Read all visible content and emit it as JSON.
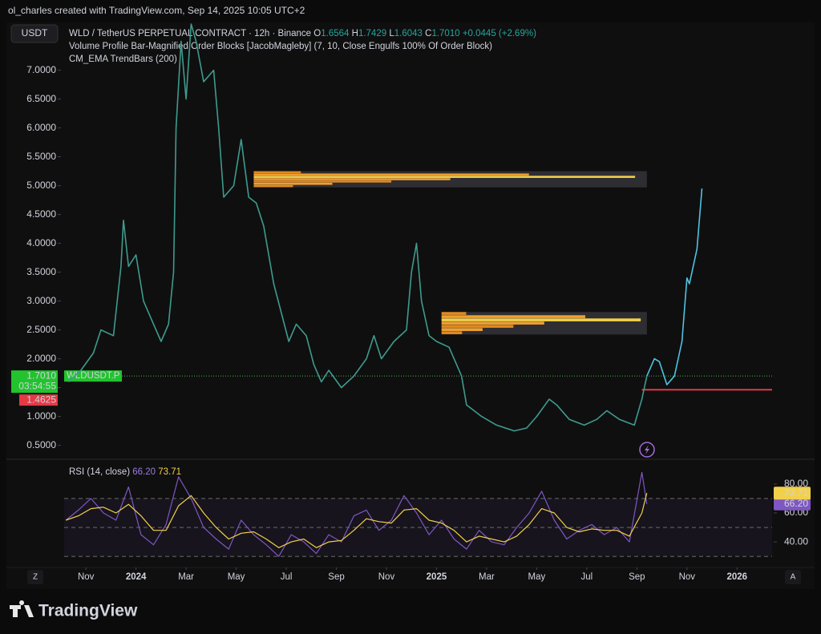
{
  "page": {
    "credit": "ol_charles created with TradingView.com, Sep 14, 2025 10:05 UTC+2",
    "currency_button": "USDT",
    "legend": {
      "symbol": "WLD / TetherUS PERPETUAL CONTRACT · 12h · Binance",
      "ohlc": [
        {
          "key": "O",
          "value": "1.6564"
        },
        {
          "key": "H",
          "value": "1.7429"
        },
        {
          "key": "L",
          "value": "1.6043"
        },
        {
          "key": "C",
          "value": "1.7010"
        }
      ],
      "change": "+0.0445 (+2.69%)",
      "indicators": [
        "Volume Profile Bar-Magnified Order Blocks [JacobMagleby] (7, 10, Close Engulfs 100% Of Order Block)",
        "CM_EMA TrendBars (200)"
      ]
    },
    "axis_buttons": [
      "Z",
      "A"
    ],
    "footer": "TradingView"
  },
  "chart_data": [
    {
      "type": "line",
      "xlim": [
        -2.87,
        25.4
      ],
      "ylim": [
        0.3,
        7.8
      ],
      "xticks": [
        {
          "value": -2,
          "label": "Nov"
        },
        {
          "value": 0,
          "label": "2024"
        },
        {
          "value": 2,
          "label": "Mar"
        },
        {
          "value": 4,
          "label": "May"
        },
        {
          "value": 6,
          "label": "Jul"
        },
        {
          "value": 8,
          "label": "Sep"
        },
        {
          "value": 10,
          "label": "Nov"
        },
        {
          "value": 12,
          "label": "2025"
        },
        {
          "value": 14,
          "label": "Mar"
        },
        {
          "value": 16,
          "label": "May"
        },
        {
          "value": 18,
          "label": "Jul"
        },
        {
          "value": 20,
          "label": "Sep"
        },
        {
          "value": 22,
          "label": "Nov"
        },
        {
          "value": 24,
          "label": "2026"
        }
      ],
      "yticks": [
        {
          "value": 0.5,
          "label": "0.5000"
        },
        {
          "value": 1,
          "label": "1.0000"
        },
        {
          "value": 1.5,
          "label": "1.5000"
        },
        {
          "value": 2,
          "label": "2.0000"
        },
        {
          "value": 2.5,
          "label": "2.5000"
        },
        {
          "value": 3,
          "label": "3.0000"
        },
        {
          "value": 3.5,
          "label": "3.5000"
        },
        {
          "value": 4,
          "label": "4.0000"
        },
        {
          "value": 4.5,
          "label": "4.5000"
        },
        {
          "value": 5,
          "label": "5.0000"
        },
        {
          "value": 5.5,
          "label": "5.5000"
        },
        {
          "value": 6,
          "label": "6.0000"
        },
        {
          "value": 6.5,
          "label": "6.5000"
        },
        {
          "value": 7,
          "label": "7.0000"
        }
      ],
      "series": [
        {
          "color": "#3f9b8c",
          "x": [
            -2.7,
            -2.2,
            -1.7,
            -1.4,
            -0.9,
            -0.6,
            -0.5,
            -0.3,
            0.0,
            0.3,
            0.7,
            1.0,
            1.3,
            1.5,
            1.6,
            1.8,
            2.0,
            2.2,
            2.4,
            2.7,
            3.1,
            3.3,
            3.5,
            3.9,
            4.2,
            4.5,
            4.8,
            5.1,
            5.5,
            5.8,
            6.1,
            6.4,
            6.8,
            7.1,
            7.4,
            7.7,
            8.2,
            8.7,
            9.2,
            9.5,
            9.8,
            10.3,
            10.8,
            11.0,
            11.2,
            11.4,
            11.7,
            12.0,
            12.5,
            13.0,
            13.2,
            13.8,
            14.4,
            15.1,
            15.6,
            16.0,
            16.5,
            16.8,
            17.3,
            17.9,
            18.4,
            18.8,
            19.3,
            19.9,
            20.2,
            20.4
          ],
          "values": [
            1.6,
            1.8,
            2.1,
            2.5,
            2.4,
            3.6,
            4.4,
            3.6,
            3.8,
            3.0,
            2.6,
            2.3,
            2.6,
            3.5,
            6.0,
            7.5,
            6.5,
            7.8,
            7.5,
            6.8,
            7.0,
            6.0,
            4.8,
            5.0,
            5.8,
            4.8,
            4.7,
            4.3,
            3.3,
            2.8,
            2.3,
            2.6,
            2.4,
            1.9,
            1.6,
            1.8,
            1.5,
            1.7,
            2.0,
            2.4,
            2.0,
            2.3,
            2.5,
            3.5,
            4.0,
            3.0,
            2.4,
            2.3,
            2.2,
            1.7,
            1.2,
            1.0,
            0.85,
            0.75,
            0.8,
            1.0,
            1.3,
            1.2,
            0.95,
            0.85,
            0.95,
            1.1,
            0.95,
            0.85,
            1.3,
            1.7
          ]
        },
        {
          "color": "#4fc3e0",
          "x": [
            20.4,
            20.7,
            20.9,
            21.2,
            21.5,
            21.8,
            22.0,
            22.1,
            22.4,
            22.6
          ],
          "values": [
            1.7,
            2.0,
            1.95,
            1.55,
            1.7,
            2.3,
            3.4,
            3.3,
            3.9,
            4.95
          ]
        }
      ],
      "order_blocks": [
        {
          "x": [
            4.7,
            20.4
          ],
          "y": [
            4.97,
            5.25
          ]
        },
        {
          "x": [
            12.2,
            20.4
          ],
          "y": [
            2.42,
            2.81
          ]
        }
      ],
      "last_price": {
        "value": 1.701,
        "label": "1.7010"
      },
      "countdown": "03:54:55",
      "symbol_tag": "WLDUSDT.P",
      "stop_level": 1.4625,
      "stop_start": 20.2
    },
    {
      "type": "line",
      "title": "RSI (14, close)",
      "xlim": [
        -2.87,
        25.4
      ],
      "ylim": [
        24,
        96
      ],
      "yticks": [
        {
          "value": 40,
          "label": "40.00"
        },
        {
          "value": 60,
          "label": "60.00"
        },
        {
          "value": 80,
          "label": "80.00"
        }
      ],
      "levels": [
        70,
        50,
        30
      ],
      "x": [
        -2.8,
        -2.3,
        -1.8,
        -1.3,
        -0.8,
        -0.3,
        0.2,
        0.7,
        1.2,
        1.7,
        2.2,
        2.7,
        3.2,
        3.7,
        4.2,
        4.7,
        5.2,
        5.7,
        6.2,
        6.7,
        7.2,
        7.7,
        8.2,
        8.7,
        9.2,
        9.7,
        10.2,
        10.7,
        11.2,
        11.7,
        12.2,
        12.7,
        13.2,
        13.7,
        14.2,
        14.7,
        15.2,
        15.7,
        16.2,
        16.7,
        17.2,
        17.7,
        18.2,
        18.7,
        19.2,
        19.7,
        20.2,
        20.4
      ],
      "series": [
        {
          "color": "#7e57c2",
          "values": [
            55,
            62,
            70,
            60,
            55,
            78,
            45,
            38,
            52,
            85,
            70,
            50,
            42,
            35,
            55,
            45,
            38,
            30,
            45,
            40,
            32,
            45,
            40,
            58,
            62,
            48,
            55,
            72,
            60,
            45,
            55,
            42,
            35,
            48,
            40,
            38,
            50,
            60,
            75,
            55,
            42,
            48,
            52,
            45,
            50,
            40,
            88,
            66.2
          ]
        },
        {
          "color": "#f2d04b",
          "values": [
            55,
            58,
            63,
            64,
            60,
            66,
            58,
            48,
            48,
            65,
            72,
            60,
            50,
            42,
            46,
            47,
            42,
            36,
            40,
            42,
            36,
            40,
            41,
            48,
            56,
            54,
            53,
            62,
            63,
            55,
            53,
            48,
            40,
            44,
            42,
            40,
            44,
            52,
            63,
            60,
            50,
            47,
            49,
            48,
            48,
            44,
            60,
            73.71
          ]
        }
      ],
      "readout": [
        {
          "value": 66.2,
          "label": "66.20"
        },
        73.71
      ]
    }
  ]
}
